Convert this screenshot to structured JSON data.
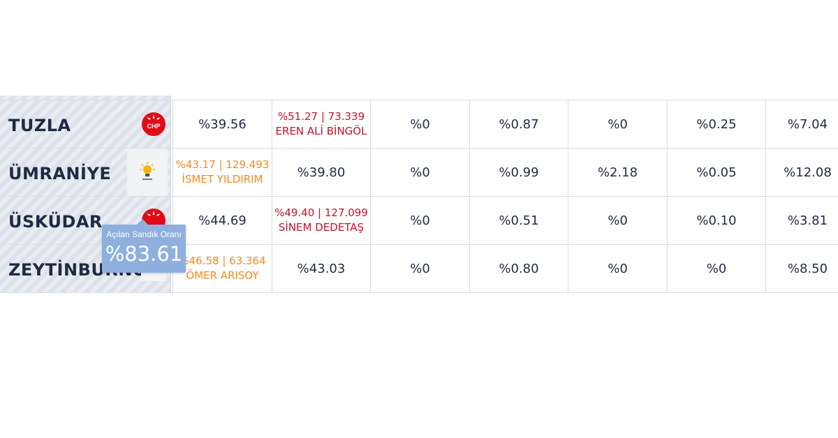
{
  "tooltip": {
    "label": "Açılan Sandık Oranı",
    "value": "%83.61"
  },
  "rows": [
    {
      "district": "TUZLA",
      "party_icon": "chp-logo-icon",
      "c1": "%39.56",
      "c2_top": "%51.27 | 73.339",
      "c2_name": "EREN ALİ BİNGÖL",
      "c3": "%0",
      "c4": "%0.87",
      "c5": "%0",
      "c6": "%0.25",
      "c7": "%7.04"
    },
    {
      "district": "ÜMRANİYE",
      "party_icon": "akp-logo-icon",
      "c1_top": "%43.17 | 129.493",
      "c1_name": "İSMET YILDIRIM",
      "c2": "%39.80",
      "c3": "%0",
      "c4": "%0.99",
      "c5": "%2.18",
      "c6": "%0.05",
      "c7": "%12.08"
    },
    {
      "district": "ÜSKÜDAR",
      "party_icon": "chp-logo-icon",
      "c1": "%44.69",
      "c2_top": "%49.40 | 127.099",
      "c2_name": "SİNEM DEDETAŞ",
      "c3": "%0",
      "c4": "%0.51",
      "c5": "%0",
      "c6": "%0.10",
      "c7": "%3.81"
    },
    {
      "district": "ZEYTİNBURNU",
      "party_icon": "akp-logo-icon",
      "c1_top": "%46.58 | 63.364",
      "c1_name": "ÖMER ARISOY",
      "c2": "%43.03",
      "c3": "%0",
      "c4": "%0.80",
      "c5": "%0",
      "c6": "%0",
      "c7": "%8.50"
    }
  ],
  "colors": {
    "chp_red": "#c8102e",
    "akp_orange": "#f28a1e",
    "tooltip_bg": "#8fb0de"
  }
}
